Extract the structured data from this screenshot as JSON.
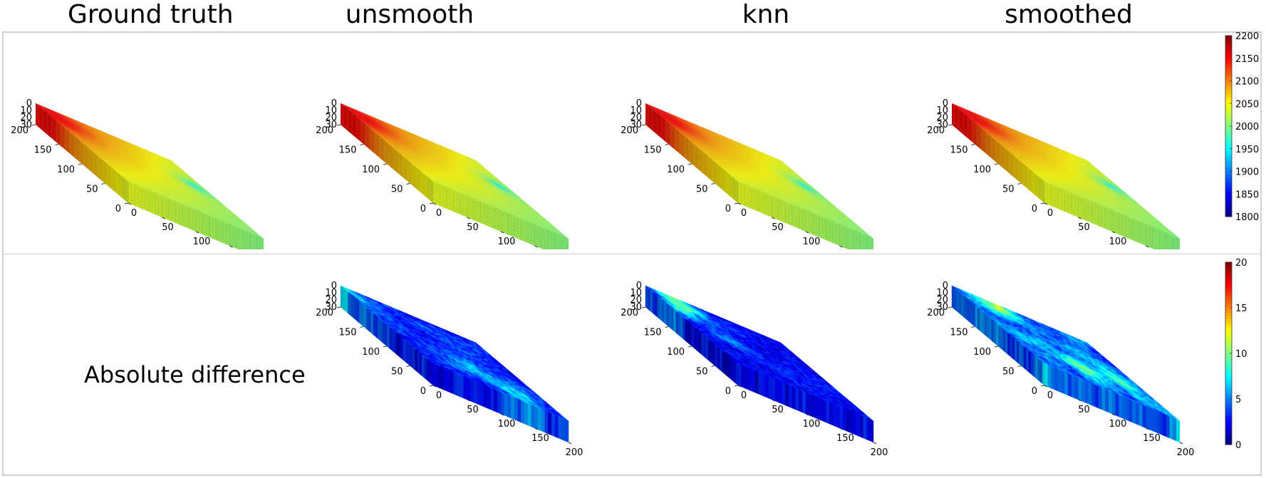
{
  "titles": {
    "ground_truth": "Ground truth",
    "unsmooth": "unsmooth",
    "knn": "knn",
    "smoothed": "smoothed"
  },
  "row_labels": {
    "absolute_difference": "Absolute difference"
  },
  "colors": {
    "frame": "#cfcfcf",
    "colormap": "jet"
  },
  "chart_data": [
    {
      "type": "heatmap",
      "panel": "top-ground-truth",
      "title": "Ground truth",
      "axes": {
        "x": {
          "range": [
            0,
            200
          ],
          "ticks": [
            0,
            50,
            100,
            150,
            200
          ]
        },
        "y": {
          "range": [
            0,
            200
          ],
          "ticks": [
            0,
            50,
            100,
            150,
            200
          ]
        },
        "z": {
          "range": [
            0,
            30
          ],
          "ticks": [
            0,
            10,
            20,
            30
          ]
        }
      },
      "color_range": [
        1800,
        2200
      ],
      "features": {
        "high": {
          "x": 20,
          "y": 170,
          "value": 2160
        },
        "low": {
          "x": 180,
          "y": 120,
          "value": 1900
        },
        "corner_values": {
          "x0_y0": 2040,
          "x200_y0": 2000,
          "x0_y200": 2130,
          "x200_y200": 2040
        }
      }
    },
    {
      "type": "heatmap",
      "panel": "top-unsmooth",
      "title": "unsmooth",
      "axes": {
        "x": {
          "range": [
            0,
            200
          ],
          "ticks": [
            0,
            50,
            100,
            150,
            200
          ]
        },
        "y": {
          "range": [
            0,
            200
          ],
          "ticks": [
            0,
            50,
            100,
            150,
            200
          ]
        },
        "z": {
          "range": [
            0,
            30
          ],
          "ticks": [
            0,
            10,
            20,
            30
          ]
        }
      },
      "color_range": [
        1800,
        2200
      ],
      "features": {
        "high": {
          "x": 20,
          "y": 170,
          "value": 2160
        },
        "low": {
          "x": 180,
          "y": 120,
          "value": 1900
        }
      }
    },
    {
      "type": "heatmap",
      "panel": "top-knn",
      "title": "knn",
      "axes": {
        "x": {
          "range": [
            0,
            200
          ],
          "ticks": [
            0,
            50,
            100,
            150,
            200
          ]
        },
        "y": {
          "range": [
            0,
            200
          ],
          "ticks": [
            0,
            50,
            100,
            150,
            200
          ]
        },
        "z": {
          "range": [
            0,
            30
          ],
          "ticks": [
            0,
            10,
            20,
            30
          ]
        }
      },
      "color_range": [
        1800,
        2200
      ],
      "features": {
        "high": {
          "x": 20,
          "y": 170,
          "value": 2160
        },
        "low": {
          "x": 180,
          "y": 120,
          "value": 1900
        }
      }
    },
    {
      "type": "heatmap",
      "panel": "top-smoothed",
      "title": "smoothed",
      "axes": {
        "x": {
          "range": [
            0,
            200
          ],
          "ticks": [
            0,
            50,
            100,
            150,
            200
          ]
        },
        "y": {
          "range": [
            0,
            200
          ],
          "ticks": [
            0,
            50,
            100,
            150,
            200
          ]
        },
        "z": {
          "range": [
            0,
            30
          ],
          "ticks": [
            0,
            10,
            20,
            30
          ]
        }
      },
      "color_range": [
        1800,
        2200
      ],
      "features": {
        "high": {
          "x": 20,
          "y": 170,
          "value": 2160
        },
        "low": {
          "x": 180,
          "y": 120,
          "value": 1900
        }
      }
    },
    {
      "type": "heatmap",
      "panel": "bottom-unsmooth",
      "row": "Absolute difference",
      "axes": {
        "x": {
          "range": [
            0,
            200
          ],
          "ticks": [
            0,
            50,
            100,
            150,
            200
          ]
        },
        "y": {
          "range": [
            0,
            200
          ],
          "ticks": [
            0,
            50,
            100,
            150,
            200
          ]
        },
        "z": {
          "range": [
            0,
            30
          ],
          "ticks": [
            0,
            10,
            20,
            30
          ]
        }
      },
      "color_range": [
        0,
        20
      ],
      "features": {
        "base_value": 2.5,
        "hotspots": [
          {
            "x": 140,
            "y": 30,
            "value": 8
          },
          {
            "x": 100,
            "y": 60,
            "value": 6
          },
          {
            "x": 5,
            "y": 185,
            "value": 6
          }
        ]
      }
    },
    {
      "type": "heatmap",
      "panel": "bottom-knn",
      "row": "Absolute difference",
      "axes": {
        "x": {
          "range": [
            0,
            200
          ],
          "ticks": [
            0,
            50,
            100,
            150,
            200
          ]
        },
        "y": {
          "range": [
            0,
            200
          ],
          "ticks": [
            0,
            50,
            100,
            150,
            200
          ]
        },
        "z": {
          "range": [
            0,
            30
          ],
          "ticks": [
            0,
            10,
            20,
            30
          ]
        }
      },
      "color_range": [
        0,
        20
      ],
      "features": {
        "base_value": 2,
        "hotspots": [
          {
            "x": 40,
            "y": 185,
            "value": 9
          },
          {
            "x": 15,
            "y": 150,
            "value": 6
          },
          {
            "x": 60,
            "y": 100,
            "value": 5
          }
        ]
      }
    },
    {
      "type": "heatmap",
      "panel": "bottom-smoothed",
      "row": "Absolute difference",
      "axes": {
        "x": {
          "range": [
            0,
            200
          ],
          "ticks": [
            0,
            50,
            100,
            150,
            200
          ]
        },
        "y": {
          "range": [
            0,
            200
          ],
          "ticks": [
            0,
            50,
            100,
            150,
            200
          ]
        },
        "z": {
          "range": [
            0,
            30
          ],
          "ticks": [
            0,
            10,
            20,
            30
          ]
        }
      },
      "color_range": [
        0,
        20
      ],
      "features": {
        "base_value": 4,
        "hotspots": [
          {
            "x": 60,
            "y": 190,
            "value": 9
          },
          {
            "x": 100,
            "y": 60,
            "value": 8
          },
          {
            "x": 160,
            "y": 80,
            "value": 7
          }
        ]
      }
    }
  ],
  "colorbars": {
    "top": {
      "min": 1800,
      "max": 2200,
      "ticks": [
        "2200",
        "2150",
        "2100",
        "2050",
        "2000",
        "1950",
        "1900",
        "1850",
        "1800"
      ]
    },
    "bottom": {
      "min": 0,
      "max": 20,
      "ticks": [
        "20",
        "15",
        "10",
        "5",
        "0"
      ]
    }
  }
}
